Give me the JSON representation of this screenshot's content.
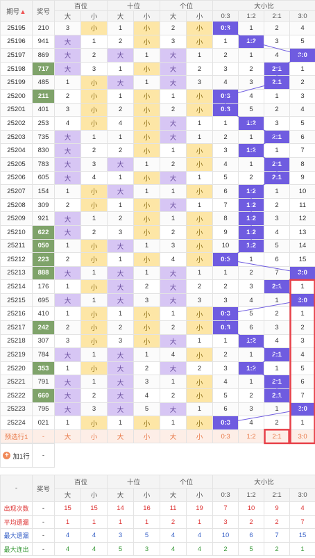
{
  "header": {
    "period_label": "期号",
    "prize_label": "奖号",
    "groups": [
      "百位",
      "十位",
      "个位",
      "大小比"
    ],
    "size_labels": [
      "大",
      "小",
      "大",
      "小",
      "大",
      "小"
    ],
    "ratio_labels": [
      "0:3",
      "1:2",
      "2:1",
      "3:0"
    ]
  },
  "rows": [
    {
      "period": "25195",
      "prize": "210",
      "cells": [
        "3",
        "小",
        "1",
        "小",
        "2",
        "小",
        "0:3",
        "1",
        "2",
        "4"
      ]
    },
    {
      "period": "25196",
      "prize": "941",
      "cells": [
        "大",
        "1",
        "2",
        "小",
        "3",
        "小",
        "1",
        "1:2",
        "3",
        "5"
      ]
    },
    {
      "period": "25197",
      "prize": "869",
      "cells": [
        "大",
        "2",
        "大",
        "1",
        "大",
        "1",
        "2",
        "1",
        "4",
        "3:0"
      ]
    },
    {
      "period": "25198",
      "prize": "717",
      "cells": [
        "大",
        "3",
        "1",
        "小",
        "大",
        "2",
        "3",
        "2",
        "2:1",
        "1"
      ]
    },
    {
      "period": "25199",
      "prize": "485",
      "cells": [
        "1",
        "小",
        "大",
        "1",
        "大",
        "3",
        "4",
        "3",
        "2:1",
        "2"
      ]
    },
    {
      "period": "25200",
      "prize": "211",
      "cells": [
        "2",
        "小",
        "1",
        "小",
        "1",
        "小",
        "0:3",
        "4",
        "1",
        "3"
      ]
    },
    {
      "period": "25201",
      "prize": "401",
      "cells": [
        "3",
        "小",
        "2",
        "小",
        "2",
        "小",
        "0:3",
        "5",
        "2",
        "4"
      ]
    },
    {
      "period": "25202",
      "prize": "253",
      "cells": [
        "4",
        "小",
        "4",
        "小",
        "大",
        "1",
        "1",
        "1:2",
        "3",
        "5"
      ]
    },
    {
      "period": "25203",
      "prize": "735",
      "cells": [
        "大",
        "1",
        "1",
        "小",
        "大",
        "1",
        "2",
        "1",
        "2:1",
        "6"
      ]
    },
    {
      "period": "25204",
      "prize": "830",
      "cells": [
        "大",
        "2",
        "2",
        "小",
        "1",
        "小",
        "3",
        "1:2",
        "1",
        "7"
      ]
    },
    {
      "period": "25205",
      "prize": "783",
      "cells": [
        "大",
        "3",
        "大",
        "1",
        "2",
        "小",
        "4",
        "1",
        "2:1",
        "8"
      ]
    },
    {
      "period": "25206",
      "prize": "605",
      "cells": [
        "大",
        "4",
        "1",
        "小",
        "大",
        "1",
        "5",
        "2",
        "2:1",
        "9"
      ]
    },
    {
      "period": "25207",
      "prize": "154",
      "cells": [
        "1",
        "小",
        "大",
        "1",
        "1",
        "小",
        "6",
        "1:2",
        "1",
        "10"
      ]
    },
    {
      "period": "25208",
      "prize": "309",
      "cells": [
        "2",
        "小",
        "1",
        "小",
        "大",
        "1",
        "7",
        "1:2",
        "2",
        "11"
      ]
    },
    {
      "period": "25209",
      "prize": "921",
      "cells": [
        "大",
        "1",
        "2",
        "小",
        "1",
        "小",
        "8",
        "1:2",
        "3",
        "12"
      ]
    },
    {
      "period": "25210",
      "prize": "622",
      "cells": [
        "大",
        "2",
        "3",
        "小",
        "2",
        "小",
        "9",
        "1:2",
        "4",
        "13"
      ]
    },
    {
      "period": "25211",
      "prize": "050",
      "cells": [
        "1",
        "小",
        "大",
        "1",
        "3",
        "小",
        "10",
        "1:2",
        "5",
        "14"
      ]
    },
    {
      "period": "25212",
      "prize": "223",
      "cells": [
        "2",
        "小",
        "1",
        "小",
        "4",
        "小",
        "0:3",
        "1",
        "6",
        "15"
      ]
    },
    {
      "period": "25213",
      "prize": "888",
      "cells": [
        "大",
        "1",
        "大",
        "1",
        "大",
        "1",
        "1",
        "2",
        "7",
        "3:0"
      ]
    },
    {
      "period": "25214",
      "prize": "176",
      "cells": [
        "1",
        "小",
        "大",
        "2",
        "大",
        "2",
        "2",
        "3",
        "2:1",
        "1"
      ]
    },
    {
      "period": "25215",
      "prize": "695",
      "cells": [
        "大",
        "1",
        "大",
        "3",
        "大",
        "3",
        "3",
        "4",
        "1",
        "3:0"
      ]
    },
    {
      "period": "25216",
      "prize": "410",
      "cells": [
        "1",
        "小",
        "1",
        "小",
        "1",
        "小",
        "0:3",
        "5",
        "2",
        "1"
      ]
    },
    {
      "period": "25217",
      "prize": "242",
      "cells": [
        "2",
        "小",
        "2",
        "小",
        "2",
        "小",
        "0:3",
        "6",
        "3",
        "2"
      ]
    },
    {
      "period": "25218",
      "prize": "307",
      "cells": [
        "3",
        "小",
        "3",
        "小",
        "大",
        "1",
        "1",
        "1:2",
        "4",
        "3"
      ]
    },
    {
      "period": "25219",
      "prize": "784",
      "cells": [
        "大",
        "1",
        "大",
        "1",
        "4",
        "小",
        "2",
        "1",
        "2:1",
        "4"
      ]
    },
    {
      "period": "25220",
      "prize": "353",
      "cells": [
        "1",
        "小",
        "大",
        "2",
        "大",
        "2",
        "3",
        "1:2",
        "1",
        "5"
      ]
    },
    {
      "period": "25221",
      "prize": "791",
      "cells": [
        "大",
        "1",
        "大",
        "3",
        "1",
        "小",
        "4",
        "1",
        "2:1",
        "6"
      ]
    },
    {
      "period": "25222",
      "prize": "660",
      "cells": [
        "大",
        "2",
        "大",
        "4",
        "2",
        "小",
        "5",
        "2",
        "2:1",
        "7"
      ]
    },
    {
      "period": "25223",
      "prize": "795",
      "cells": [
        "大",
        "3",
        "大",
        "5",
        "大",
        "1",
        "6",
        "3",
        "1",
        "3:0"
      ]
    },
    {
      "period": "25224",
      "prize": "021",
      "cells": [
        "1",
        "小",
        "1",
        "小",
        "1",
        "小",
        "0:3",
        "4",
        "2",
        "1"
      ]
    }
  ],
  "prediction": {
    "label": "预选行1",
    "prize": "-",
    "cells": [
      "大",
      "小",
      "大",
      "小",
      "大",
      "小",
      "0:3",
      "1:2",
      "2:1",
      "3:0"
    ]
  },
  "add_row": {
    "label": "加1行",
    "value": "-"
  },
  "stats": {
    "dash": "-",
    "prize_label": "奖号",
    "rows": [
      {
        "label": "出现次数",
        "prize": "-",
        "values": [
          "15",
          "15",
          "14",
          "16",
          "11",
          "19",
          "7",
          "10",
          "9",
          "4"
        ]
      },
      {
        "label": "平均遗漏",
        "prize": "-",
        "values": [
          "1",
          "1",
          "1",
          "1",
          "2",
          "1",
          "3",
          "2",
          "2",
          "7"
        ]
      },
      {
        "label": "最大遗漏",
        "prize": "-",
        "values": [
          "4",
          "4",
          "3",
          "5",
          "4",
          "4",
          "10",
          "6",
          "7",
          "15"
        ]
      },
      {
        "label": "最大连出",
        "prize": "-",
        "values": [
          "4",
          "4",
          "5",
          "3",
          "4",
          "4",
          "2",
          "5",
          "2",
          "1"
        ]
      }
    ]
  },
  "colors": {
    "big": "#d7c6f4",
    "small": "#fde6a6",
    "ratio_hit": "#6f5ce0",
    "prize_hl": "#7fa36a",
    "highlight_box": "#e8424a",
    "line": "#6f5ce0"
  }
}
